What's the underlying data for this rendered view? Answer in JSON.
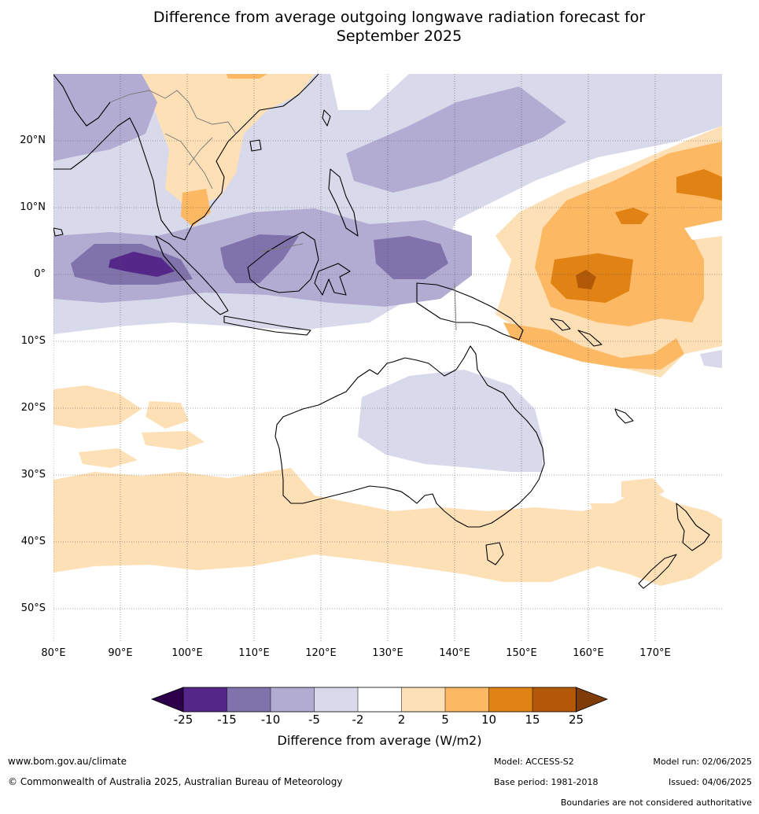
{
  "title": {
    "line1": "Difference from average outgoing longwave radiation forecast for",
    "line2": "September 2025"
  },
  "map": {
    "lat_labels": [
      "20°N",
      "10°N",
      "0°",
      "10°S",
      "20°S",
      "30°S",
      "40°S",
      "50°S"
    ],
    "lon_labels": [
      "80°E",
      "90°E",
      "100°E",
      "110°E",
      "120°E",
      "130°E",
      "140°E",
      "150°E",
      "160°E",
      "170°E"
    ]
  },
  "colorbar": {
    "ticks": [
      "-25",
      "-15",
      "-10",
      "-5",
      "-2",
      "2",
      "5",
      "10",
      "15",
      "25"
    ],
    "colors": [
      "#2d004b",
      "#542788",
      "#8073ac",
      "#b2abd2",
      "#d8daeb",
      "#ffffff",
      "#fee0b6",
      "#fdb863",
      "#e08214",
      "#b35806",
      "#7f3b08"
    ],
    "label": "Difference from average (W/m2)"
  },
  "footer": {
    "website": "www.bom.gov.au/climate",
    "copyright": "© Commonwealth of Australia 2025, Australian Bureau of Meteorology",
    "model": "Model: ACCESS-S2",
    "base_period": "Base period: 1981-2018",
    "model_run": "Model run: 02/06/2025",
    "issued": "Issued: 04/06/2025",
    "disclaimer": "Boundaries are not considered authoritative"
  }
}
